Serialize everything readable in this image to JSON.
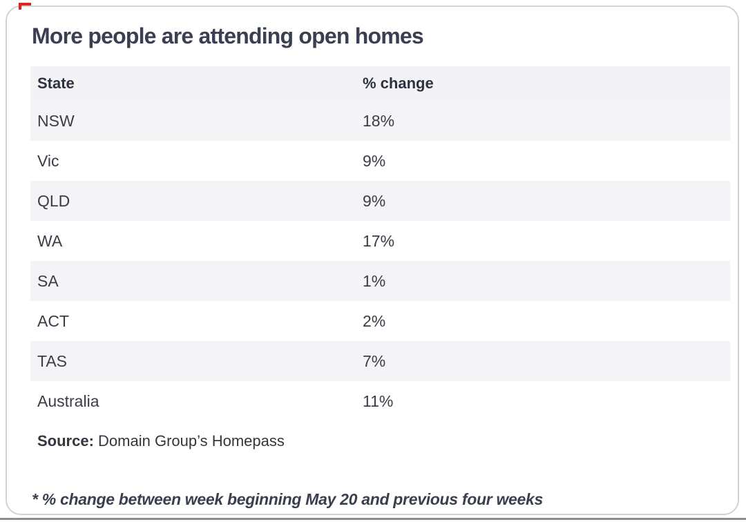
{
  "title": "More people are attending open homes",
  "table": {
    "columns": {
      "state": "State",
      "change": "% change"
    },
    "rows": [
      {
        "state": "NSW",
        "change": "18%"
      },
      {
        "state": "Vic",
        "change": "9%"
      },
      {
        "state": "QLD",
        "change": "9%"
      },
      {
        "state": "WA",
        "change": "17%"
      },
      {
        "state": "SA",
        "change": "1%"
      },
      {
        "state": "ACT",
        "change": "2%"
      },
      {
        "state": "TAS",
        "change": "7%"
      },
      {
        "state": "Australia",
        "change": "11%"
      }
    ]
  },
  "source": {
    "label": "Source:",
    "text": " Domain Group’s Homepass"
  },
  "footnote": "* % change between week beginning May 20 and previous four weeks",
  "colors": {
    "stripe": "#f4f4f7",
    "header_bg": "#f3f3f6",
    "title_text": "#3a3f51",
    "body_text": "#3a3d47",
    "card_border": "#d2d2d4",
    "bottom_rule": "#8c8c8e",
    "corner_mark": "#e2231d"
  },
  "chart_data": {
    "type": "table",
    "title": "More people are attending open homes",
    "columns": [
      "State",
      "% change"
    ],
    "categories": [
      "NSW",
      "Vic",
      "QLD",
      "WA",
      "SA",
      "ACT",
      "TAS",
      "Australia"
    ],
    "values": [
      18,
      9,
      9,
      17,
      1,
      2,
      7,
      11
    ],
    "unit": "%",
    "source": "Domain Group’s Homepass",
    "note": "* % change between week beginning May 20 and previous four weeks",
    "layout": "zebra-striped two-column table inside rounded white card"
  }
}
